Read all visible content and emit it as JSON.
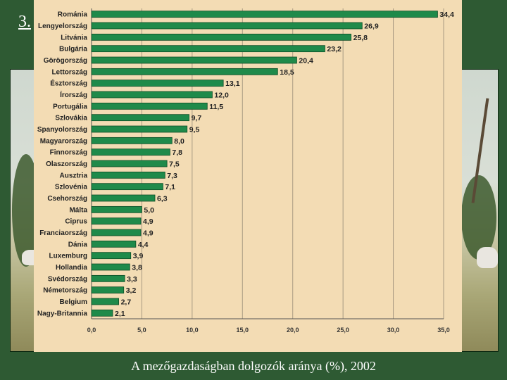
{
  "slide": {
    "number_text": "3."
  },
  "caption": "A mezőgazdaságban dolgozók aránya (%), 2002",
  "colors": {
    "bar": "#1f8a4a",
    "bar_stroke": "#0d4d26",
    "panel": "#f3dcb4",
    "grid": "#a89a82"
  },
  "chart_data": {
    "type": "bar",
    "orientation": "horizontal",
    "title": "",
    "xlabel": "",
    "ylabel": "",
    "xlim": [
      0,
      35
    ],
    "x_ticks": [
      "0,0",
      "5,0",
      "10,0",
      "15,0",
      "20,0",
      "25,0",
      "30,0",
      "35,0"
    ],
    "x_tick_values": [
      0,
      5,
      10,
      15,
      20,
      25,
      30,
      35
    ],
    "grid": "vertical",
    "categories": [
      "Románia",
      "Lengyelország",
      "Litvánia",
      "Bulgária",
      "Görögország",
      "Lettország",
      "Észtország",
      "Írország",
      "Portugália",
      "Szlovákia",
      "Spanyolország",
      "Magyarország",
      "Finnország",
      "Olaszország",
      "Ausztria",
      "Szlovénia",
      "Csehország",
      "Málta",
      "Ciprus",
      "Franciaország",
      "Dánia",
      "Luxemburg",
      "Hollandia",
      "Svédország",
      "Németország",
      "Belgium",
      "Nagy-Britannia"
    ],
    "values": [
      34.4,
      26.9,
      25.8,
      23.2,
      20.4,
      18.5,
      13.1,
      12.0,
      11.5,
      9.7,
      9.5,
      8.0,
      7.8,
      7.5,
      7.3,
      7.1,
      6.3,
      5.0,
      4.9,
      4.9,
      4.4,
      3.9,
      3.8,
      3.3,
      3.2,
      2.7,
      2.1
    ],
    "value_labels": [
      "34,4",
      "26,9",
      "25,8",
      "23,2",
      "20,4",
      "18,5",
      "13,1",
      "12,0",
      "11,5",
      "9,7",
      "9,5",
      "8,0",
      "7,8",
      "7,5",
      "7,3",
      "7,1",
      "6,3",
      "5,0",
      "4,9",
      "4,9",
      "4,4",
      "3,9",
      "3,8",
      "3,3",
      "3,2",
      "2,7",
      "2,1"
    ]
  }
}
